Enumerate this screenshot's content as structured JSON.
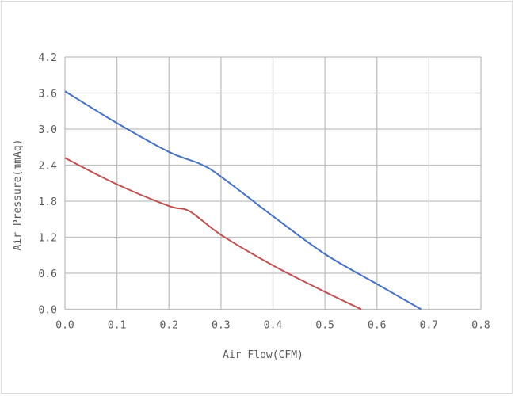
{
  "chart_data": {
    "type": "line",
    "title": "",
    "xlabel": "Air Flow(CFM)",
    "ylabel": "Air Pressure(mmAq)",
    "xlim": [
      0,
      0.8
    ],
    "ylim": [
      0,
      4.2
    ],
    "xticks": [
      "0.0",
      "0.1",
      "0.2",
      "0.3",
      "0.4",
      "0.5",
      "0.6",
      "0.7",
      "0.8"
    ],
    "yticks": [
      "0.0",
      "0.6",
      "1.2",
      "1.8",
      "2.4",
      "3.0",
      "3.6",
      "4.2"
    ],
    "grid": true,
    "legend": "none",
    "series": [
      {
        "name": "upper curve",
        "color": "#4472c4",
        "x": [
          0,
          0.1,
          0.2,
          0.26,
          0.3,
          0.4,
          0.5,
          0.6,
          0.685
        ],
        "y": [
          3.63,
          3.1,
          2.62,
          2.42,
          2.21,
          1.55,
          0.92,
          0.42,
          0.0
        ]
      },
      {
        "name": "lower curve",
        "color": "#c0504d",
        "x": [
          0,
          0.1,
          0.2,
          0.24,
          0.3,
          0.4,
          0.5,
          0.57
        ],
        "y": [
          2.52,
          2.08,
          1.72,
          1.63,
          1.24,
          0.73,
          0.29,
          0.0
        ]
      }
    ]
  }
}
